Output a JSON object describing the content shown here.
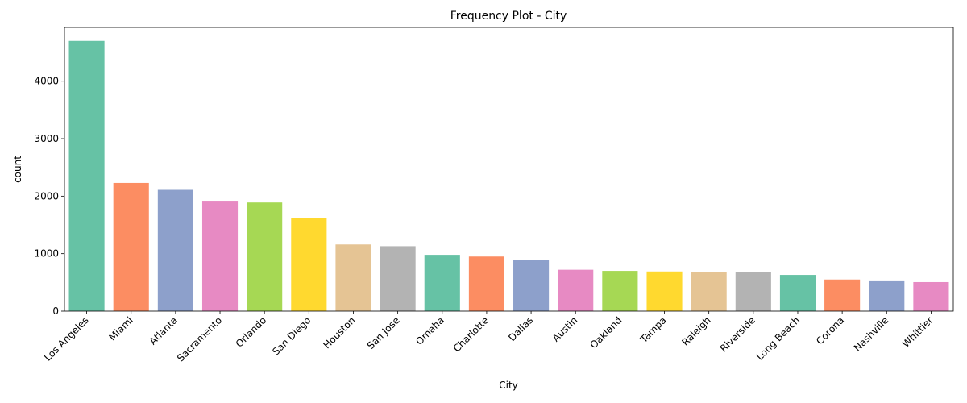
{
  "chart_data": {
    "type": "bar",
    "title": "Frequency Plot - City",
    "xlabel": "City",
    "ylabel": "count",
    "categories": [
      "Los Angeles",
      "Miami",
      "Atlanta",
      "Sacramento",
      "Orlando",
      "San Diego",
      "Houston",
      "San Jose",
      "Omaha",
      "Charlotte",
      "Dallas",
      "Austin",
      "Oakland",
      "Tampa",
      "Raleigh",
      "Riverside",
      "Long Beach",
      "Corona",
      "Nashville",
      "Whittier"
    ],
    "values": [
      4700,
      2230,
      2110,
      1920,
      1890,
      1620,
      1160,
      1130,
      980,
      950,
      890,
      720,
      700,
      690,
      680,
      680,
      630,
      550,
      520,
      505
    ],
    "colors": [
      "#66c2a5",
      "#fc8d62",
      "#8da0cb",
      "#e78ac3",
      "#a6d854",
      "#ffd92f",
      "#e5c494",
      "#b3b3b3",
      "#66c2a5",
      "#fc8d62",
      "#8da0cb",
      "#e78ac3",
      "#a6d854",
      "#ffd92f",
      "#e5c494",
      "#b3b3b3",
      "#66c2a5",
      "#fc8d62",
      "#8da0cb",
      "#e78ac3"
    ],
    "yticks": [
      0,
      1000,
      2000,
      3000,
      4000
    ],
    "ylim": [
      0,
      4935
    ],
    "grid": false,
    "legend": "none"
  }
}
